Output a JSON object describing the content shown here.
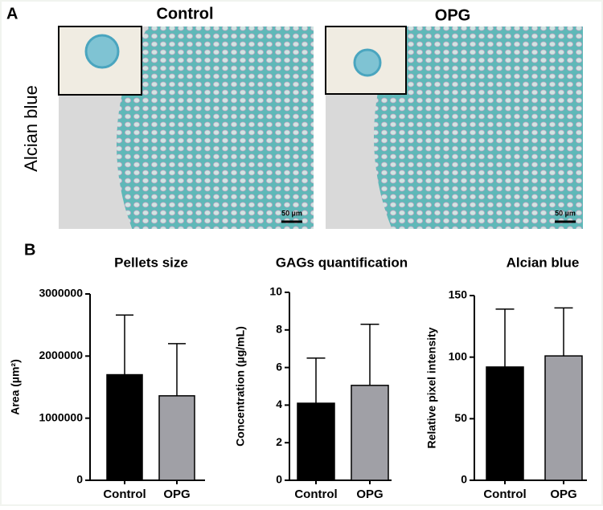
{
  "panel_a": {
    "label": "A",
    "columns": [
      "Control",
      "OPG"
    ],
    "row_label": "Alcian blue",
    "scale_bars": [
      "50 µm",
      "50 µm"
    ]
  },
  "panel_b": {
    "label": "B"
  },
  "chart_data": [
    {
      "type": "bar",
      "title": "Pellets size",
      "y_label": "Area (µm²)",
      "categories": [
        "Control",
        "OPG"
      ],
      "values": [
        1700000,
        1360000
      ],
      "errors": [
        960000,
        840000
      ],
      "colors": [
        "#000000",
        "#a0a0a6"
      ],
      "ylim": [
        0,
        3000000
      ],
      "yticks": [
        0,
        1000000,
        2000000,
        3000000
      ]
    },
    {
      "type": "bar",
      "title": "GAGs quantification",
      "y_label": "Concentration (µg/mL)",
      "categories": [
        "Control",
        "OPG"
      ],
      "values": [
        4.1,
        5.05
      ],
      "errors": [
        2.4,
        3.25
      ],
      "colors": [
        "#000000",
        "#a0a0a6"
      ],
      "ylim": [
        0,
        10
      ],
      "yticks": [
        0,
        2,
        4,
        6,
        8,
        10
      ]
    },
    {
      "type": "bar",
      "title": "Alcian blue",
      "y_label": "Relative pixel intensity",
      "categories": [
        "Control",
        "OPG"
      ],
      "values": [
        92,
        101
      ],
      "errors": [
        47,
        39
      ],
      "colors": [
        "#000000",
        "#a0a0a6"
      ],
      "ylim": [
        0,
        150
      ],
      "yticks": [
        0,
        50,
        100,
        150
      ]
    }
  ]
}
